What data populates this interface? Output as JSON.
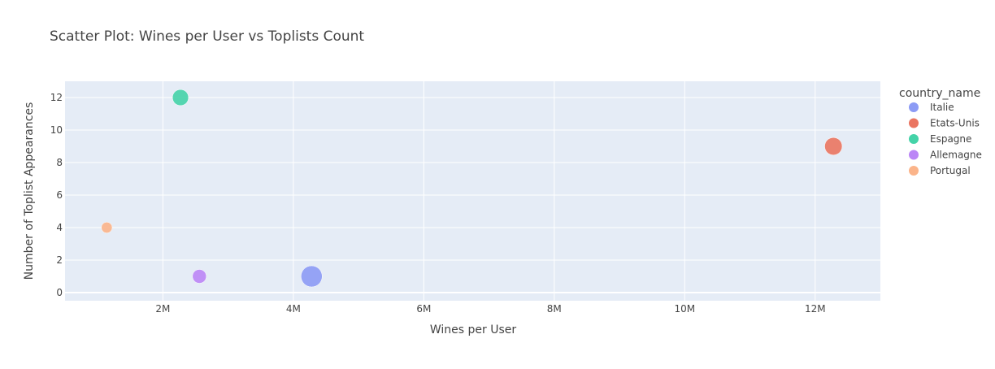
{
  "chart_data": {
    "type": "scatter",
    "title": "Scatter Plot: Wines per User vs Toplists Count",
    "xlabel": "Wines per User",
    "ylabel": "Number of Toplist Appearances",
    "xlim": [
      500000,
      13000000
    ],
    "ylim": [
      -0.5,
      13
    ],
    "xticks": [
      2000000,
      4000000,
      6000000,
      8000000,
      10000000,
      12000000
    ],
    "xtick_labels": [
      "2M",
      "4M",
      "6M",
      "8M",
      "10M",
      "12M"
    ],
    "yticks": [
      0,
      2,
      4,
      6,
      8,
      10,
      12
    ],
    "ytick_labels": [
      "0",
      "2",
      "4",
      "6",
      "8",
      "10",
      "12"
    ],
    "grid": true,
    "legend_title": "country_name",
    "legend_position": "right",
    "series": [
      {
        "name": "Italie",
        "color": "#8c9bf5",
        "points": [
          {
            "x": 4280000,
            "y": 1,
            "size": 1.0
          }
        ]
      },
      {
        "name": "Etats-Unis",
        "color": "#ea7561",
        "points": [
          {
            "x": 12280000,
            "y": 9,
            "size": 0.75
          }
        ]
      },
      {
        "name": "Espagne",
        "color": "#44d3a8",
        "points": [
          {
            "x": 2270000,
            "y": 12,
            "size": 0.65
          }
        ]
      },
      {
        "name": "Allemagne",
        "color": "#bb86f6",
        "points": [
          {
            "x": 2560000,
            "y": 1,
            "size": 0.5
          }
        ]
      },
      {
        "name": "Portugal",
        "color": "#fbb48a",
        "points": [
          {
            "x": 1140000,
            "y": 4,
            "size": 0.3
          }
        ]
      }
    ]
  }
}
